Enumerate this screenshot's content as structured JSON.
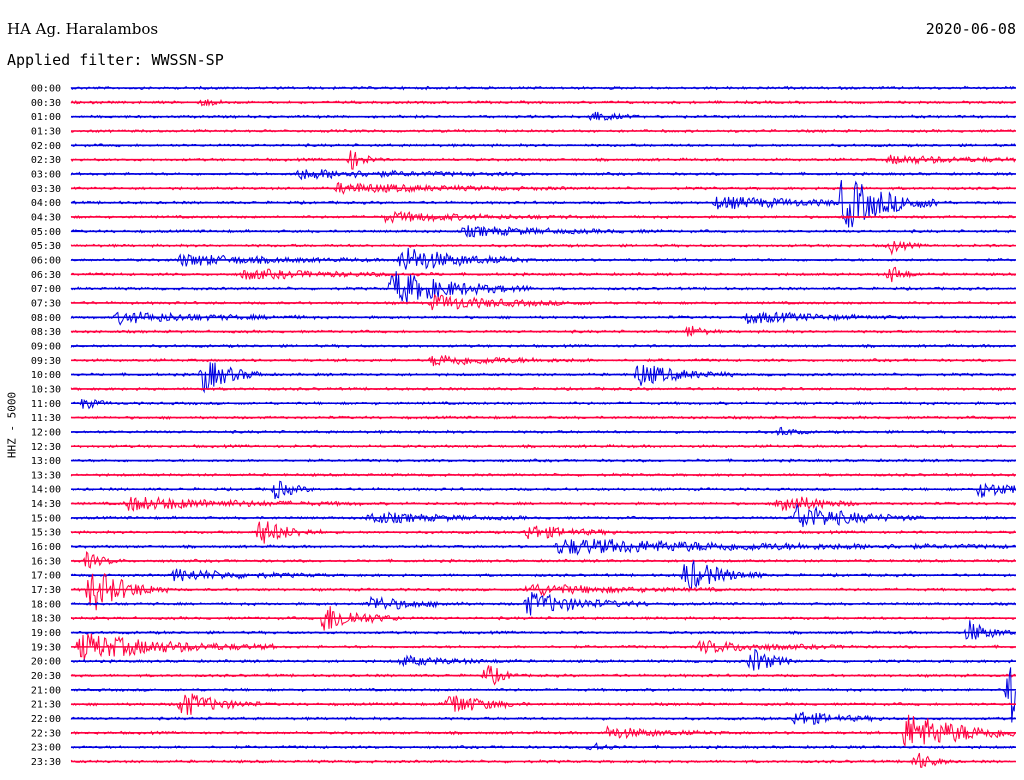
{
  "header": {
    "station": "HA Ag. Haralambos",
    "date": "2020-06-08",
    "filter": "Applied filter: WWSSN-SP"
  },
  "chart_data": {
    "type": "line",
    "title": "HA Ag. Haralambos",
    "ylabel": "HHZ - 5000",
    "colors": {
      "even_rows": "#0000e0",
      "odd_rows": "#ff0040"
    },
    "row_labels": [
      "00:00",
      "00:30",
      "01:00",
      "01:30",
      "02:00",
      "02:30",
      "03:00",
      "03:30",
      "04:00",
      "04:30",
      "05:00",
      "05:30",
      "06:00",
      "06:30",
      "07:00",
      "07:30",
      "08:00",
      "08:30",
      "09:00",
      "09:30",
      "10:00",
      "10:30",
      "11:00",
      "11:30",
      "12:00",
      "12:30",
      "13:00",
      "13:30",
      "14:00",
      "14:30",
      "15:00",
      "15:30",
      "16:00",
      "16:30",
      "17:00",
      "17:30",
      "18:00",
      "18:30",
      "19:00",
      "19:30",
      "20:00",
      "20:30",
      "21:00",
      "21:30",
      "22:00",
      "22:30",
      "23:00",
      "23:30"
    ],
    "events": [
      {
        "row": 1,
        "minute": 4.2,
        "amp": 4,
        "dur": 0.4
      },
      {
        "row": 2,
        "minute": 16.5,
        "amp": 6,
        "dur": 0.6
      },
      {
        "row": 5,
        "minute": 8.9,
        "amp": 10,
        "dur": 0.4
      },
      {
        "row": 5,
        "minute": 26,
        "amp": 4,
        "dur": 2.5
      },
      {
        "row": 6,
        "minute": 7.2,
        "amp": 5,
        "dur": 3
      },
      {
        "row": 7,
        "minute": 8.5,
        "amp": 5,
        "dur": 3
      },
      {
        "row": 8,
        "minute": 24.5,
        "amp": 28,
        "dur": 1.2
      },
      {
        "row": 8,
        "minute": 20.5,
        "amp": 6,
        "dur": 3
      },
      {
        "row": 9,
        "minute": 10,
        "amp": 5,
        "dur": 2.5
      },
      {
        "row": 10,
        "minute": 12.5,
        "amp": 5,
        "dur": 2.5
      },
      {
        "row": 11,
        "minute": 26,
        "amp": 8,
        "dur": 0.4
      },
      {
        "row": 12,
        "minute": 10.5,
        "amp": 14,
        "dur": 1.6
      },
      {
        "row": 12,
        "minute": 3.5,
        "amp": 6,
        "dur": 2.5
      },
      {
        "row": 13,
        "minute": 5.5,
        "amp": 5,
        "dur": 2.5
      },
      {
        "row": 13,
        "minute": 26,
        "amp": 10,
        "dur": 0.4
      },
      {
        "row": 14,
        "minute": 10.2,
        "amp": 18,
        "dur": 1.8
      },
      {
        "row": 15,
        "minute": 11.5,
        "amp": 8,
        "dur": 2
      },
      {
        "row": 16,
        "minute": 1.5,
        "amp": 6,
        "dur": 2.5
      },
      {
        "row": 16,
        "minute": 21.5,
        "amp": 6,
        "dur": 2
      },
      {
        "row": 17,
        "minute": 19.6,
        "amp": 7,
        "dur": 0.4
      },
      {
        "row": 19,
        "minute": 11.5,
        "amp": 6,
        "dur": 2
      },
      {
        "row": 20,
        "minute": 4.2,
        "amp": 18,
        "dur": 0.8
      },
      {
        "row": 20,
        "minute": 18,
        "amp": 12,
        "dur": 1.2
      },
      {
        "row": 22,
        "minute": 0.4,
        "amp": 6,
        "dur": 0.4
      },
      {
        "row": 24,
        "minute": 22.5,
        "amp": 5,
        "dur": 0.4
      },
      {
        "row": 28,
        "minute": 6.5,
        "amp": 10,
        "dur": 0.5
      },
      {
        "row": 28,
        "minute": 28.8,
        "amp": 8,
        "dur": 1.2
      },
      {
        "row": 29,
        "minute": 1.8,
        "amp": 7,
        "dur": 3
      },
      {
        "row": 29,
        "minute": 22.5,
        "amp": 12,
        "dur": 1
      },
      {
        "row": 30,
        "minute": 23,
        "amp": 14,
        "dur": 1.6
      },
      {
        "row": 30,
        "minute": 9.5,
        "amp": 6,
        "dur": 2
      },
      {
        "row": 31,
        "minute": 6,
        "amp": 14,
        "dur": 0.8
      },
      {
        "row": 31,
        "minute": 14.5,
        "amp": 8,
        "dur": 1.2
      },
      {
        "row": 32,
        "minute": 15.5,
        "amp": 8,
        "dur": 6
      },
      {
        "row": 33,
        "minute": 0.5,
        "amp": 8,
        "dur": 0.5
      },
      {
        "row": 34,
        "minute": 19.5,
        "amp": 18,
        "dur": 1
      },
      {
        "row": 34,
        "minute": 3.3,
        "amp": 6,
        "dur": 2
      },
      {
        "row": 35,
        "minute": 0.6,
        "amp": 24,
        "dur": 1
      },
      {
        "row": 35,
        "minute": 14.5,
        "amp": 6,
        "dur": 2.5
      },
      {
        "row": 36,
        "minute": 14.5,
        "amp": 12,
        "dur": 1.6
      },
      {
        "row": 36,
        "minute": 9.5,
        "amp": 8,
        "dur": 1.2
      },
      {
        "row": 37,
        "minute": 8,
        "amp": 16,
        "dur": 1
      },
      {
        "row": 38,
        "minute": 28.5,
        "amp": 12,
        "dur": 0.6
      },
      {
        "row": 39,
        "minute": 0.3,
        "amp": 14,
        "dur": 2.5
      },
      {
        "row": 39,
        "minute": 20,
        "amp": 6,
        "dur": 2
      },
      {
        "row": 40,
        "minute": 21.6,
        "amp": 14,
        "dur": 0.6
      },
      {
        "row": 40,
        "minute": 10.5,
        "amp": 5,
        "dur": 1.5
      },
      {
        "row": 41,
        "minute": 13.2,
        "amp": 14,
        "dur": 0.4
      },
      {
        "row": 42,
        "minute": 29.8,
        "amp": 40,
        "dur": 1.6
      },
      {
        "row": 43,
        "minute": 3.5,
        "amp": 14,
        "dur": 1
      },
      {
        "row": 43,
        "minute": 12,
        "amp": 12,
        "dur": 1
      },
      {
        "row": 44,
        "minute": 23,
        "amp": 8,
        "dur": 1.2
      },
      {
        "row": 45,
        "minute": 26.5,
        "amp": 20,
        "dur": 1.8
      },
      {
        "row": 45,
        "minute": 17,
        "amp": 6,
        "dur": 1.5
      },
      {
        "row": 46,
        "minute": 16.5,
        "amp": 6,
        "dur": 0.4
      },
      {
        "row": 47,
        "minute": 26.8,
        "amp": 10,
        "dur": 0.5
      }
    ]
  }
}
